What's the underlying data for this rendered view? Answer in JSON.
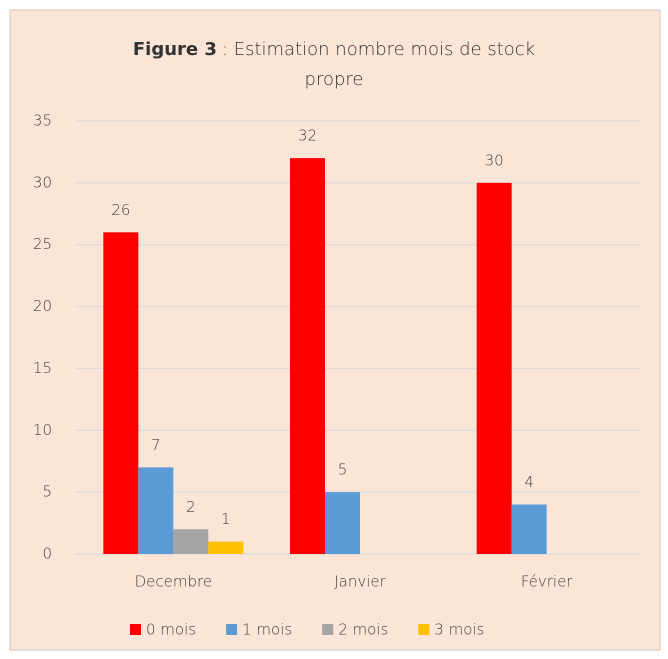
{
  "chart_data": {
    "type": "bar",
    "title_prefix": "Figure 3",
    "title": ": Estimation nombre mois de stock propre",
    "categories": [
      "Decembre",
      "Janvier",
      "Février"
    ],
    "series": [
      {
        "name": "0 mois",
        "color": "#ff0000",
        "values": [
          26,
          32,
          30
        ]
      },
      {
        "name": "1 mois",
        "color": "#5b9bd5",
        "values": [
          7,
          5,
          4
        ]
      },
      {
        "name": "2 mois",
        "color": "#a5a5a5",
        "values": [
          2,
          null,
          null
        ]
      },
      {
        "name": "3 mois",
        "color": "#ffc000",
        "values": [
          1,
          null,
          null
        ]
      }
    ],
    "ylim": [
      0,
      35
    ],
    "yticks": [
      0,
      5,
      10,
      15,
      20,
      25,
      30,
      35
    ],
    "grid": true,
    "legend": "bottom"
  }
}
